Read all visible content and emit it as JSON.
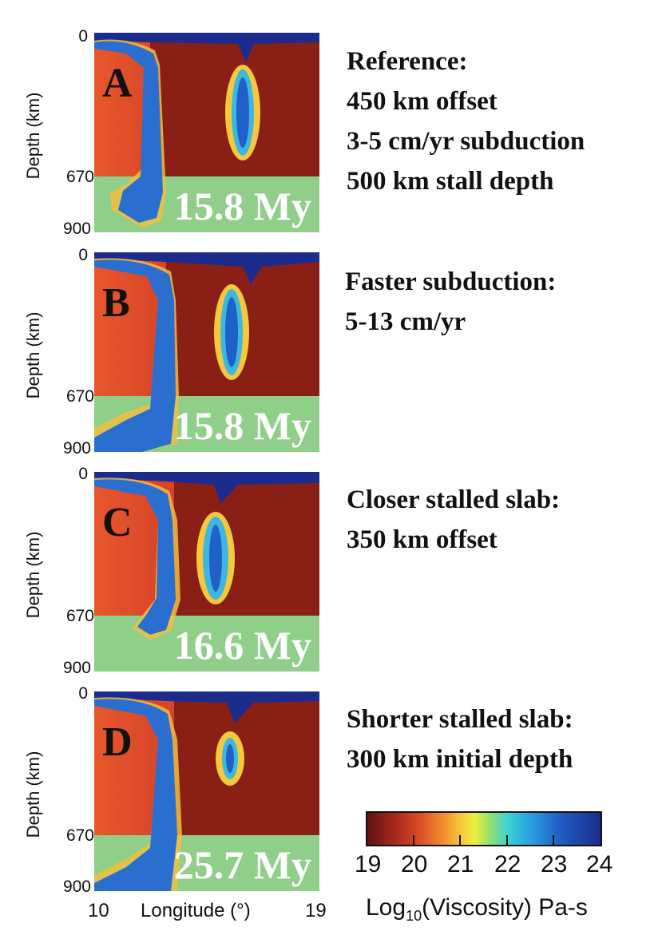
{
  "axis": {
    "y_title": "Depth (km)",
    "y_ticks": [
      "0",
      "670",
      "900"
    ],
    "x_min": "10",
    "x_max": "19",
    "x_title": "Longitude (°)"
  },
  "panels": [
    {
      "letter": "A",
      "time": "15.8 My",
      "desc": [
        "Reference:",
        "450 km offset",
        "3-5 cm/yr subduction",
        "500 km stall depth"
      ]
    },
    {
      "letter": "B",
      "time": "15.8 My",
      "desc": [
        "Faster subduction:",
        "5-13 cm/yr"
      ]
    },
    {
      "letter": "C",
      "time": "16.6 My",
      "desc": [
        "Closer stalled slab:",
        "350 km offset"
      ]
    },
    {
      "letter": "D",
      "time": "25.7 My",
      "desc": [
        "Shorter stalled slab:",
        "300 km initial depth"
      ]
    }
  ],
  "colorbar": {
    "ticks": [
      "19",
      "20",
      "21",
      "22",
      "23",
      "24"
    ],
    "title_prefix": "Log",
    "title_sub": "10",
    "title_suffix": "(Viscosity) Pa-s"
  },
  "colors": {
    "mantle": "#c73a23",
    "deep_mantle": "#8fcf8a",
    "slab": "#2060c8",
    "slab_edge": "#3cd4d0",
    "warm": "#f6c83a"
  }
}
